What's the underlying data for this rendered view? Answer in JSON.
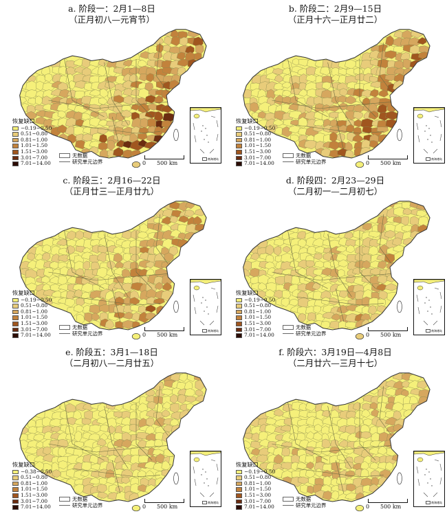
{
  "panels": [
    {
      "id": "a",
      "title_line1": "a. 阶段一：2月1—8日",
      "title_line2": "（正月初八—元宵节）",
      "intensity": 1.0,
      "seed": 11
    },
    {
      "id": "b",
      "title_line1": "b. 阶段二：2月9—15日",
      "title_line2": "（正月十六—正月廿二）",
      "intensity": 0.85,
      "seed": 23
    },
    {
      "id": "c",
      "title_line1": "c. 阶段三：2月16—22日",
      "title_line2": "（正月廿三—正月廿九）",
      "intensity": 0.7,
      "seed": 37
    },
    {
      "id": "d",
      "title_line1": "d. 阶段四：2月23—29日",
      "title_line2": "（二月初一—二月初七）",
      "intensity": 0.5,
      "seed": 41
    },
    {
      "id": "e",
      "title_line1": "e. 阶段五：3月1—18日",
      "title_line2": "（二月初八—二月廿五）",
      "intensity": 0.3,
      "seed": 53
    },
    {
      "id": "f",
      "title_line1": "f. 阶段六：3月19日—4月8日",
      "title_line2": "（二月廿六—三月十七）",
      "intensity": 0.4,
      "seed": 67
    }
  ],
  "legend": {
    "title": "恢复缺口",
    "classes": [
      {
        "label": "−0.19~0.50",
        "color": "#f5f07a"
      },
      {
        "label": "0.51~0.80",
        "color": "#e8cc7a"
      },
      {
        "label": "0.81~1.00",
        "color": "#d6a75e"
      },
      {
        "label": "1.01~1.50",
        "color": "#c2823c"
      },
      {
        "label": "1.51~3.00",
        "color": "#a0561f"
      },
      {
        "label": "3.01~7.00",
        "color": "#6b2c10"
      },
      {
        "label": "7.01~14.00",
        "color": "#2c0c05"
      }
    ],
    "first_label_e": "−0.38~0.50",
    "nodata_label": "无数据",
    "boundary_label": "研究单元边界"
  },
  "scale": {
    "zero": "0",
    "distance": "500 km"
  },
  "inset_caption": "南海诸岛",
  "colors": {
    "base": "#f5f07a",
    "border": "#8a8a50",
    "outline": "#3a3a3a"
  }
}
